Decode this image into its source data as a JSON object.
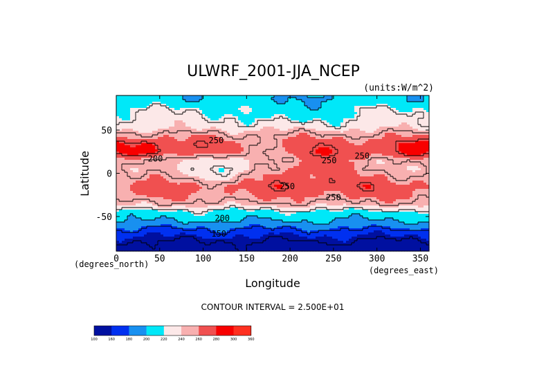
{
  "chart_data": {
    "type": "heatmap",
    "title": "ULWRF_2001-JJA_NCEP",
    "units_label": "(units:W/m^2)",
    "xlabel": "Longitude",
    "ylabel": "Latitude",
    "x_unit_label": "(degrees_east)",
    "y_unit_label": "(degrees_north)",
    "xlim": [
      0,
      360
    ],
    "ylim": [
      -90,
      90
    ],
    "x_ticks": [
      0,
      50,
      100,
      150,
      200,
      250,
      300,
      350
    ],
    "y_ticks": [
      -50,
      0,
      50
    ],
    "contour_interval_text": "CONTOUR INTERVAL = 2.500E+01",
    "colorbar": {
      "levels": [
        100,
        160,
        180,
        200,
        220,
        240,
        260,
        280,
        300,
        360
      ],
      "tick_labels": [
        "100",
        "160",
        "180",
        "200",
        "220",
        "240",
        "260",
        "280",
        "300",
        "360"
      ],
      "colors": [
        "#0010a0",
        "#0030f0",
        "#1890f0",
        "#00e8f8",
        "#fce8e8",
        "#f8b0b0",
        "#f05050",
        "#f80000",
        "#ff3020"
      ]
    },
    "contour_labels": [
      {
        "lon": 115,
        "lat": 38,
        "text": "250"
      },
      {
        "lon": 45,
        "lat": 17,
        "text": "200"
      },
      {
        "lon": 245,
        "lat": 15,
        "text": "250"
      },
      {
        "lon": 283,
        "lat": 20,
        "text": "250"
      },
      {
        "lon": 197,
        "lat": -15,
        "text": "250"
      },
      {
        "lon": 250,
        "lat": -28,
        "text": "250"
      },
      {
        "lon": 122,
        "lat": -52,
        "text": "200"
      },
      {
        "lon": 118,
        "lat": -70,
        "text": "150"
      }
    ],
    "lat_band_means": [
      {
        "lat": 85,
        "value": 205
      },
      {
        "lat": 75,
        "value": 222
      },
      {
        "lat": 65,
        "value": 228
      },
      {
        "lat": 55,
        "value": 232
      },
      {
        "lat": 45,
        "value": 252
      },
      {
        "lat": 35,
        "value": 268
      },
      {
        "lat": 25,
        "value": 272
      },
      {
        "lat": 15,
        "value": 248
      },
      {
        "lat": 5,
        "value": 245
      },
      {
        "lat": -5,
        "value": 255
      },
      {
        "lat": -15,
        "value": 268
      },
      {
        "lat": -25,
        "value": 262
      },
      {
        "lat": -35,
        "value": 248
      },
      {
        "lat": -45,
        "value": 215
      },
      {
        "lat": -55,
        "value": 200
      },
      {
        "lat": -65,
        "value": 175
      },
      {
        "lat": -75,
        "value": 155
      },
      {
        "lat": -85,
        "value": 140
      }
    ]
  }
}
